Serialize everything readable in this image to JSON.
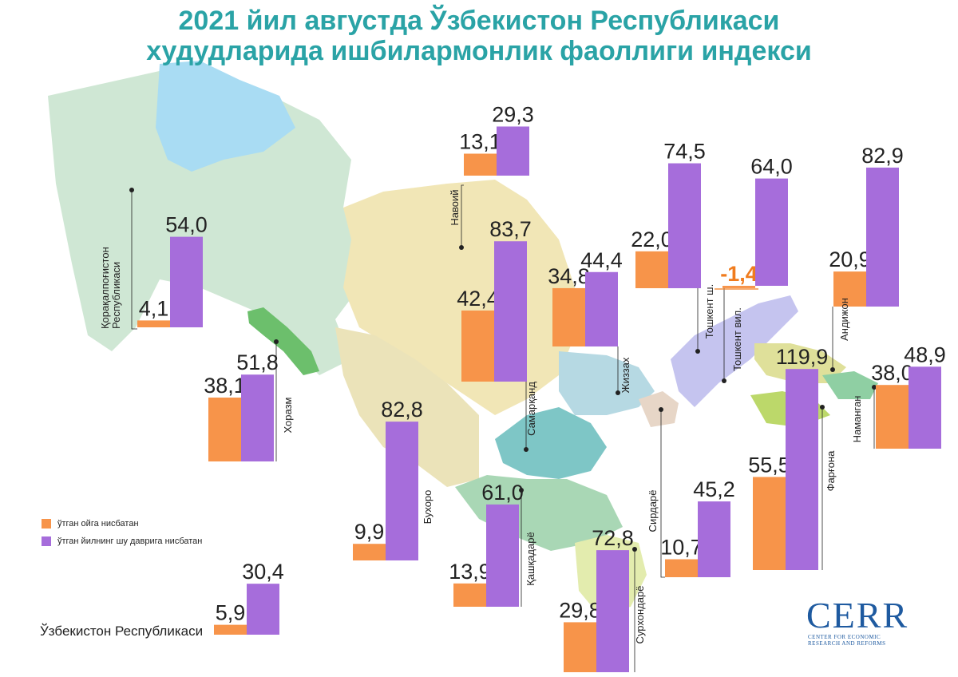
{
  "title": {
    "line1": "2021 йил августда Ўзбекистон Республикаси",
    "line2": "худудларида ишбилармонлик фаоллиги индекси"
  },
  "legend": {
    "orange_label": "ўтган ойга нисбатан",
    "purple_label": "ўтган йилнинг шу даврига нисбатан"
  },
  "colors": {
    "orange": "#f7944a",
    "purple": "#a66ddb",
    "title": "#2aa3a6",
    "negative": "#f07c1e"
  },
  "logo": {
    "name": "CERR",
    "subtitle_line1": "CENTER FOR ECONOMIC",
    "subtitle_line2": "RESEARCH AND REFORMS"
  },
  "chart_data": {
    "type": "bar",
    "series": [
      {
        "name": "ўтган ойга нисбатан"
      },
      {
        "name": "ўтган йилнинг шу даврига нисбатан"
      }
    ],
    "regions": [
      {
        "name": "Қорақалпоғистон Республикаси",
        "values": [
          4.1,
          54.0
        ],
        "labels": [
          "4,1",
          "54,0"
        ]
      },
      {
        "name": "Хоразм",
        "values": [
          38.1,
          51.8
        ],
        "labels": [
          "38,1",
          "51,8"
        ]
      },
      {
        "name": "Навоий",
        "values": [
          13.1,
          29.3
        ],
        "labels": [
          "13,1",
          "29,3"
        ]
      },
      {
        "name": "Бухоро",
        "values": [
          9.9,
          82.8
        ],
        "labels": [
          "9,9",
          "82,8"
        ]
      },
      {
        "name": "Самарқанд",
        "values": [
          42.4,
          83.7
        ],
        "labels": [
          "42,4",
          "83,7"
        ]
      },
      {
        "name": "Жиззах",
        "values": [
          34.8,
          44.4
        ],
        "labels": [
          "34,8",
          "44,4"
        ]
      },
      {
        "name": "Қашқадарё",
        "values": [
          13.9,
          61.0
        ],
        "labels": [
          "13,9",
          "61,0"
        ]
      },
      {
        "name": "Сурхондарё",
        "values": [
          29.8,
          72.8
        ],
        "labels": [
          "29,8",
          "72,8"
        ]
      },
      {
        "name": "Сирдарё",
        "values": [
          10.7,
          45.2
        ],
        "labels": [
          "10,7",
          "45,2"
        ]
      },
      {
        "name": "Тошкент ш.",
        "values": [
          22.0,
          74.5
        ],
        "labels": [
          "22,0",
          "74,5"
        ]
      },
      {
        "name": "Тошкент вил.",
        "values": [
          -1.4,
          64.0
        ],
        "labels": [
          "-1,4",
          "64,0"
        ]
      },
      {
        "name": "Андижон",
        "values": [
          20.9,
          82.9
        ],
        "labels": [
          "20,9",
          "82,9"
        ]
      },
      {
        "name": "Наманган",
        "values": [
          38.0,
          48.9
        ],
        "labels": [
          "38,0",
          "48,9"
        ]
      },
      {
        "name": "Фарғона",
        "values": [
          55.5,
          119.9
        ],
        "labels": [
          "55,5",
          "119,9"
        ]
      },
      {
        "name": "Ўзбекистон Республикаси",
        "values": [
          5.9,
          30.4
        ],
        "labels": [
          "5,9",
          "30,4"
        ]
      }
    ]
  }
}
